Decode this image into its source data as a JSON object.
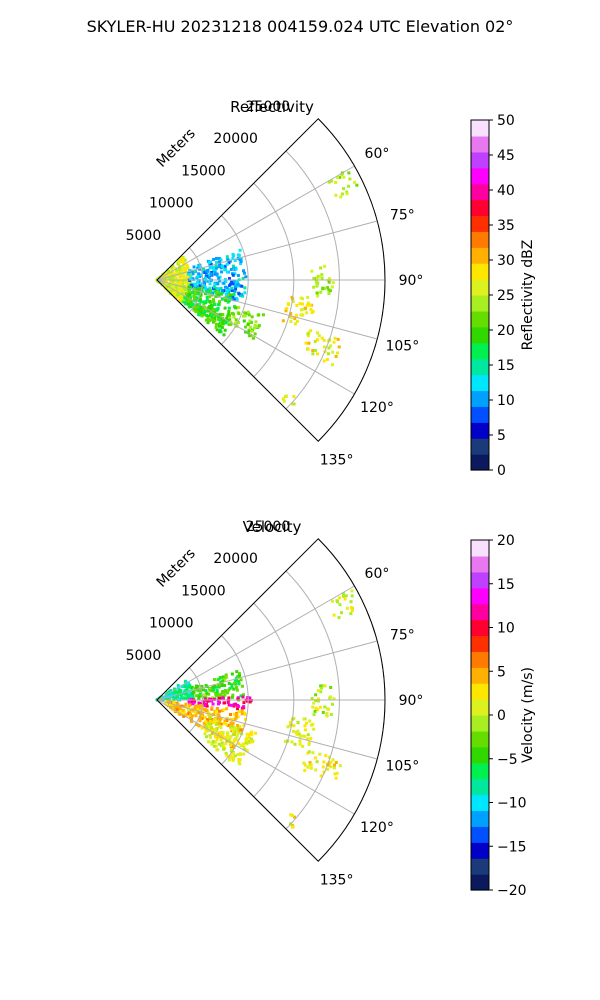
{
  "figure_title": "SKYLER-HU  20231218  004159.024 UTC Elevation 02°",
  "chart_data": [
    {
      "type": "heatmap",
      "projection": "polar-sector",
      "title": "Reflectivity",
      "radial_axis_label": "Meters",
      "radial_ticks": [
        5000,
        10000,
        15000,
        20000,
        25000
      ],
      "radial_tick_labels": [
        "5000",
        "10000",
        "15000",
        "20000",
        "25000"
      ],
      "rlim": [
        0,
        25000
      ],
      "azimuth_range_deg": [
        45,
        135
      ],
      "azimuth_ticks_deg": [
        60,
        75,
        90,
        105,
        120,
        135
      ],
      "azimuth_tick_labels": [
        "60°",
        "75°",
        "90°",
        "105°",
        "120°",
        "135°"
      ],
      "grid": true,
      "colorbar": {
        "label": "Reflectivity dBZ",
        "range": [
          0,
          50
        ],
        "ticks": [
          0,
          5,
          10,
          15,
          20,
          25,
          30,
          35,
          40,
          45,
          50
        ],
        "tick_labels": [
          "0",
          "5",
          "10",
          "15",
          "20",
          "25",
          "30",
          "35",
          "40",
          "45",
          "50"
        ],
        "colormap": [
          "#0a1a5c",
          "#1a3a7a",
          "#0000c8",
          "#0050ff",
          "#00a0ff",
          "#00e6ff",
          "#00e8a0",
          "#00f050",
          "#30d800",
          "#66dd00",
          "#a8ee20",
          "#ddf020",
          "#ffe600",
          "#ffb000",
          "#ff7a00",
          "#ff3000",
          "#ff0030",
          "#ff00a0",
          "#ff00ff",
          "#c040ff",
          "#e878f0",
          "#fae0ff"
        ]
      },
      "echo_regions": [
        {
          "az": [
            48,
            135
          ],
          "r": [
            0,
            3800
          ],
          "value": 26
        },
        {
          "az": [
            70,
            105
          ],
          "r": [
            3500,
            9800
          ],
          "value": 11
        },
        {
          "az": [
            100,
            130
          ],
          "r": [
            3500,
            9000
          ],
          "value": 19
        },
        {
          "az": [
            120,
            130
          ],
          "r": [
            3800,
            9500
          ],
          "value": 20
        },
        {
          "az": [
            108,
            122
          ],
          "r": [
            9000,
            12500
          ],
          "value": 22
        },
        {
          "az": [
            96,
            108
          ],
          "r": [
            14500,
            17500
          ],
          "value": 28
        },
        {
          "az": [
            108,
            116
          ],
          "r": [
            17500,
            21500
          ],
          "value": 27
        },
        {
          "az": [
            85,
            96
          ],
          "r": [
            17000,
            19500
          ],
          "value": 24
        },
        {
          "az": [
            60,
            66
          ],
          "r": [
            21500,
            24500
          ],
          "value": 24
        },
        {
          "az": [
            130,
            134
          ],
          "r": [
            19000,
            20500
          ],
          "value": 26
        }
      ]
    },
    {
      "type": "heatmap",
      "projection": "polar-sector",
      "title": "Velocity",
      "radial_axis_label": "Meters",
      "radial_ticks": [
        5000,
        10000,
        15000,
        20000,
        25000
      ],
      "radial_tick_labels": [
        "5000",
        "10000",
        "15000",
        "20000",
        "25000"
      ],
      "rlim": [
        0,
        25000
      ],
      "azimuth_range_deg": [
        45,
        135
      ],
      "azimuth_ticks_deg": [
        60,
        75,
        90,
        105,
        120,
        135
      ],
      "azimuth_tick_labels": [
        "60°",
        "75°",
        "90°",
        "105°",
        "120°",
        "135°"
      ],
      "grid": true,
      "colorbar": {
        "label": "Velocity (m/s)",
        "range": [
          -20,
          20
        ],
        "ticks": [
          -20,
          -15,
          -10,
          -5,
          0,
          5,
          10,
          15,
          20
        ],
        "tick_labels": [
          "−20",
          "−15",
          "−10",
          "−5",
          "0",
          "5",
          "10",
          "15",
          "20"
        ],
        "colormap": [
          "#0a1a5c",
          "#1a3a7a",
          "#0000c8",
          "#0050ff",
          "#00a0ff",
          "#00e6ff",
          "#00e8a0",
          "#00f050",
          "#30d800",
          "#66dd00",
          "#a8ee20",
          "#ddf020",
          "#ffe600",
          "#ffb000",
          "#ff7a00",
          "#ff3000",
          "#ff0030",
          "#ff00a0",
          "#ff00ff",
          "#c040ff",
          "#e878f0",
          "#fae0ff"
        ]
      },
      "echo_regions": [
        {
          "az": [
            55,
            90
          ],
          "r": [
            0,
            4000
          ],
          "value": -8
        },
        {
          "az": [
            70,
            90
          ],
          "r": [
            4000,
            9500
          ],
          "value": -4
        },
        {
          "az": [
            88,
            97
          ],
          "r": [
            3500,
            10500
          ],
          "value": 12
        },
        {
          "az": [
            97,
            122
          ],
          "r": [
            1000,
            10000
          ],
          "value": 4
        },
        {
          "az": [
            108,
            130
          ],
          "r": [
            6000,
            11500
          ],
          "value": 1
        },
        {
          "az": [
            96,
            108
          ],
          "r": [
            14500,
            17500
          ],
          "value": 1
        },
        {
          "az": [
            108,
            116
          ],
          "r": [
            17500,
            21500
          ],
          "value": 2
        },
        {
          "az": [
            85,
            96
          ],
          "r": [
            17000,
            19500
          ],
          "value": 0
        },
        {
          "az": [
            60,
            66
          ],
          "r": [
            21500,
            24500
          ],
          "value": 1
        },
        {
          "az": [
            130,
            134
          ],
          "r": [
            19000,
            20500
          ],
          "value": 2
        }
      ]
    }
  ]
}
